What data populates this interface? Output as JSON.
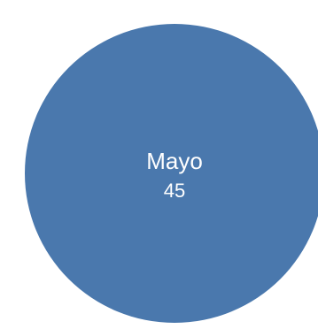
{
  "chart_data": {
    "type": "pie",
    "slices": [
      {
        "label": "Mayo",
        "value": 45,
        "display_value": "45",
        "color": "#4A78AD"
      }
    ],
    "title": "",
    "legend": "none",
    "grid": false
  }
}
